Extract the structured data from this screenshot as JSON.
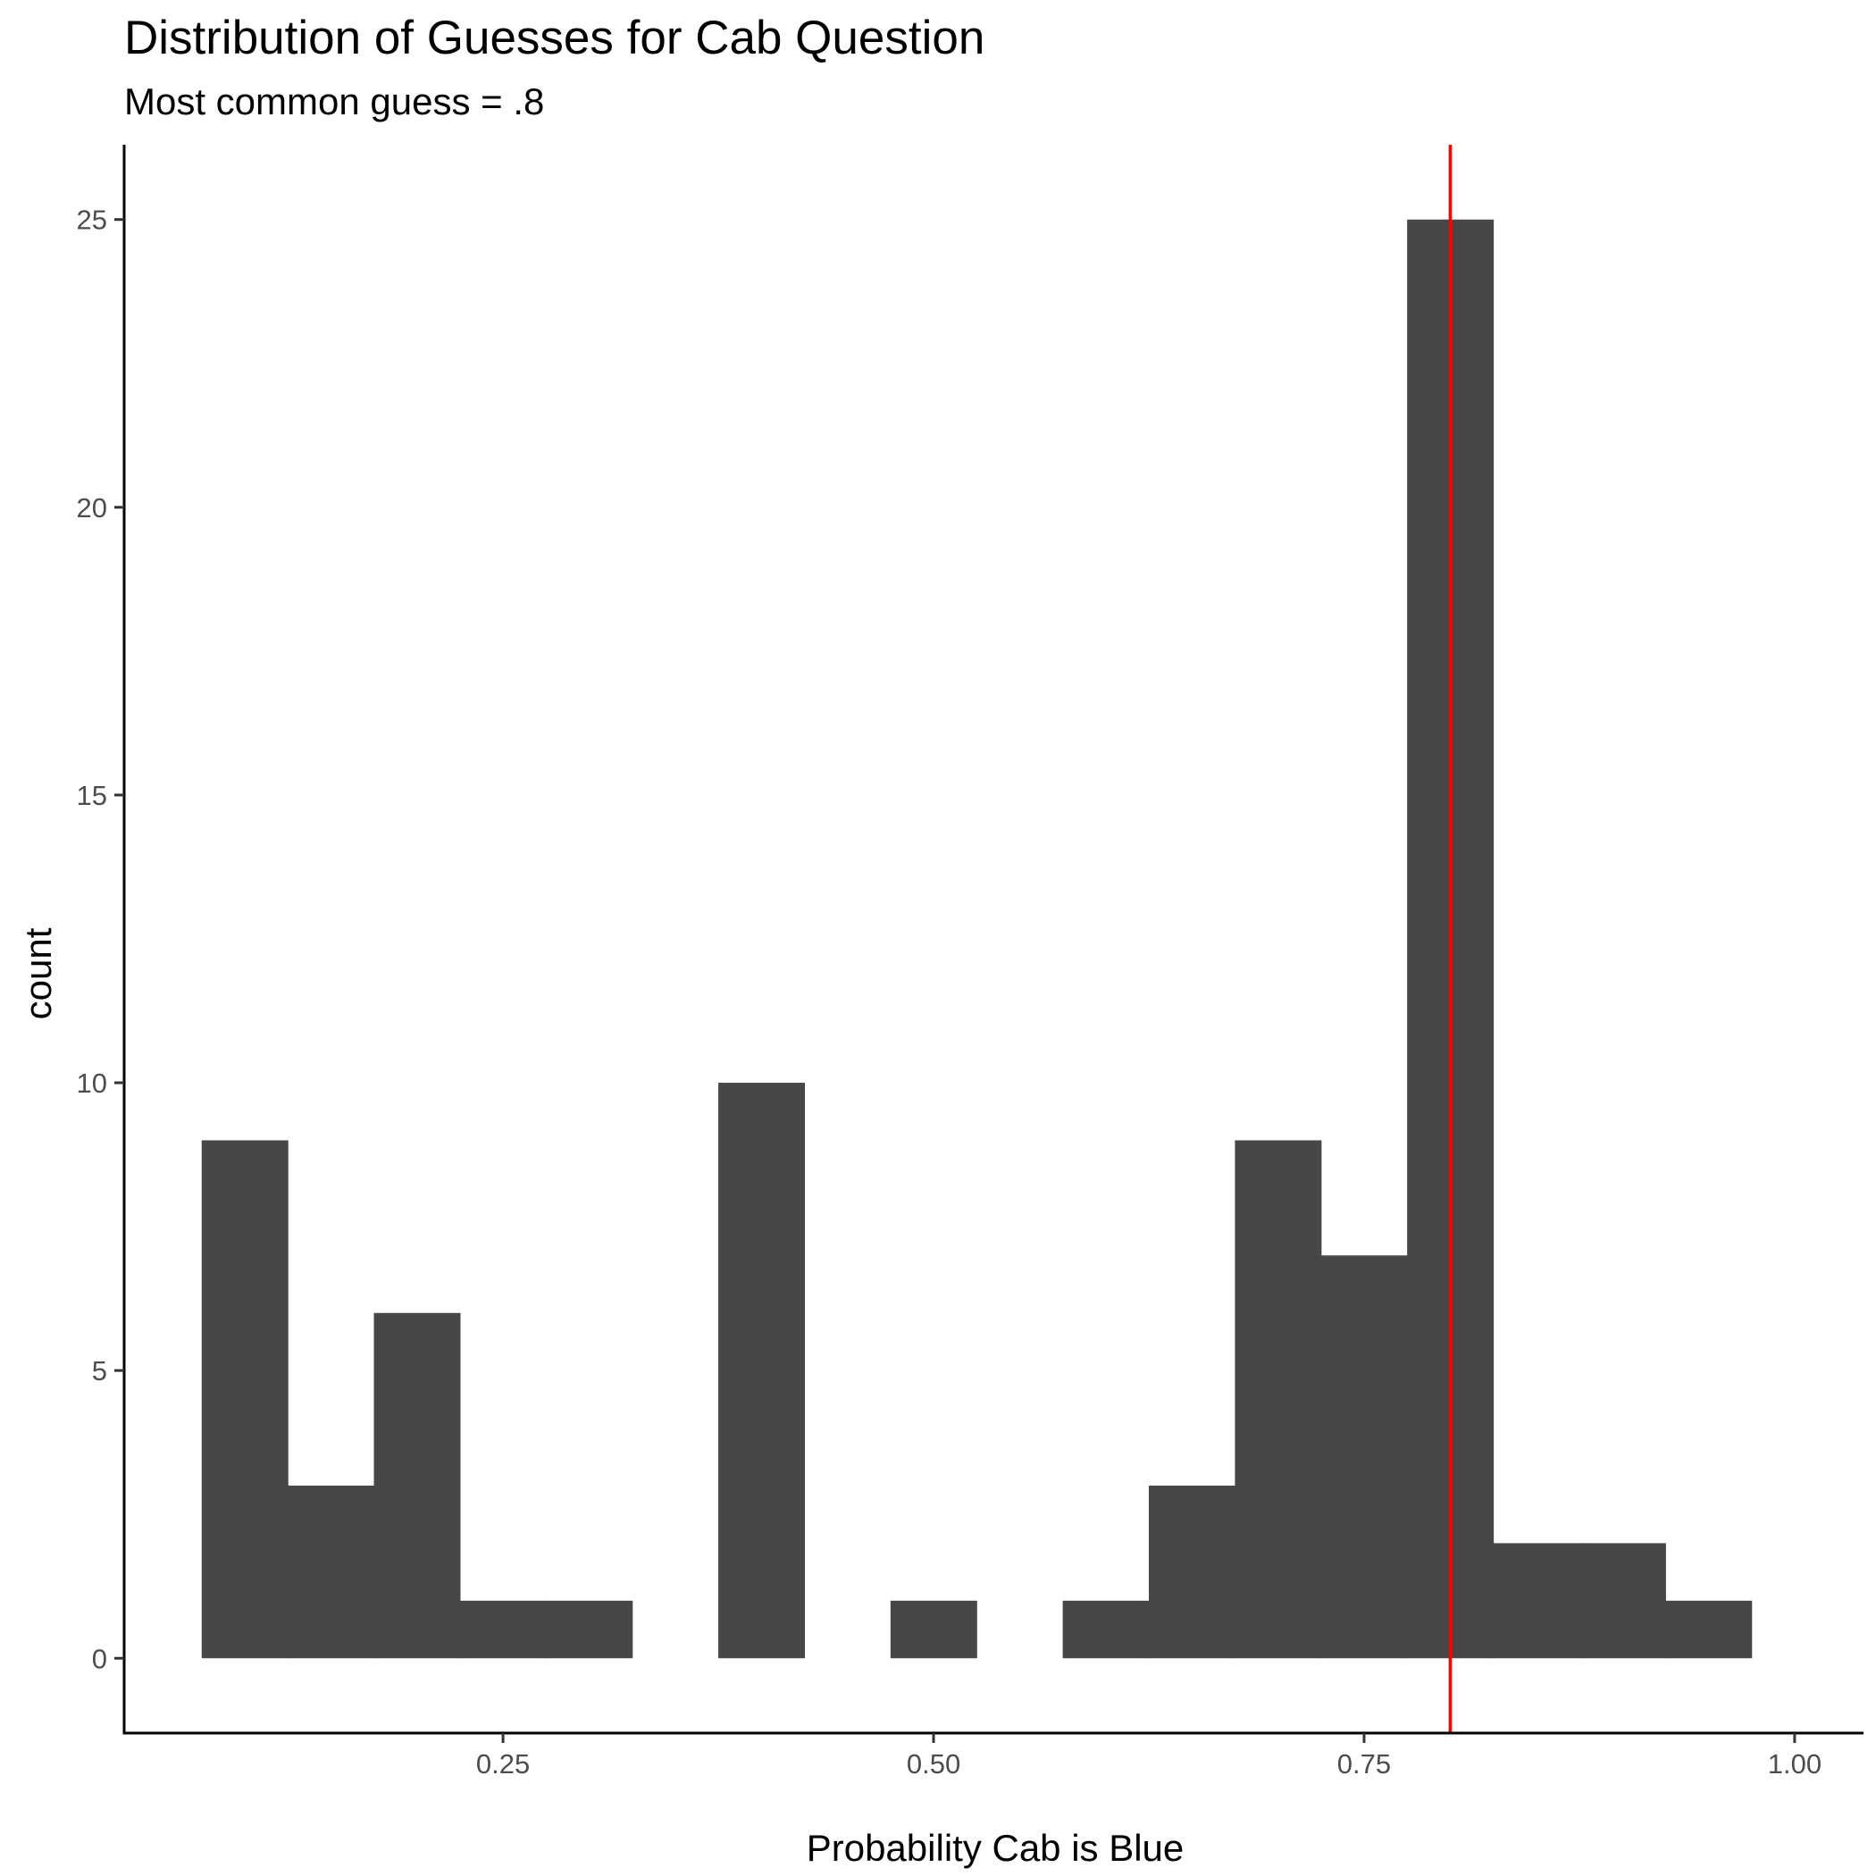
{
  "chart_data": {
    "type": "bar",
    "title": "Distribution of Guesses for Cab Question",
    "subtitle": "Most common guess = .8",
    "xlabel": "Probability Cab is Blue",
    "ylabel": "count",
    "xlim": [
      0.03,
      1.04
    ],
    "ylim": [
      -1.3,
      26.3
    ],
    "bin_width": 0.05,
    "bins": [
      {
        "center": 0.1,
        "count": 9
      },
      {
        "center": 0.15,
        "count": 3
      },
      {
        "center": 0.2,
        "count": 6
      },
      {
        "center": 0.25,
        "count": 1
      },
      {
        "center": 0.3,
        "count": 1
      },
      {
        "center": 0.35,
        "count": 0
      },
      {
        "center": 0.4,
        "count": 10
      },
      {
        "center": 0.45,
        "count": 0
      },
      {
        "center": 0.5,
        "count": 1
      },
      {
        "center": 0.55,
        "count": 0
      },
      {
        "center": 0.6,
        "count": 1
      },
      {
        "center": 0.65,
        "count": 3
      },
      {
        "center": 0.7,
        "count": 9
      },
      {
        "center": 0.75,
        "count": 7
      },
      {
        "center": 0.8,
        "count": 25
      },
      {
        "center": 0.85,
        "count": 2
      },
      {
        "center": 0.9,
        "count": 2
      },
      {
        "center": 0.95,
        "count": 1
      }
    ],
    "x_ticks": [
      {
        "value": 0.25,
        "label": "0.25"
      },
      {
        "value": 0.5,
        "label": "0.50"
      },
      {
        "value": 0.75,
        "label": "0.75"
      },
      {
        "value": 1.0,
        "label": "1.00"
      }
    ],
    "y_ticks": [
      {
        "value": 0,
        "label": "0"
      },
      {
        "value": 5,
        "label": "5"
      },
      {
        "value": 10,
        "label": "10"
      },
      {
        "value": 15,
        "label": "15"
      },
      {
        "value": 20,
        "label": "20"
      },
      {
        "value": 25,
        "label": "25"
      }
    ],
    "reference_line": {
      "x": 0.8,
      "color": "#ff0000"
    },
    "bar_color": "#474747",
    "grid": false,
    "legend": "none"
  }
}
